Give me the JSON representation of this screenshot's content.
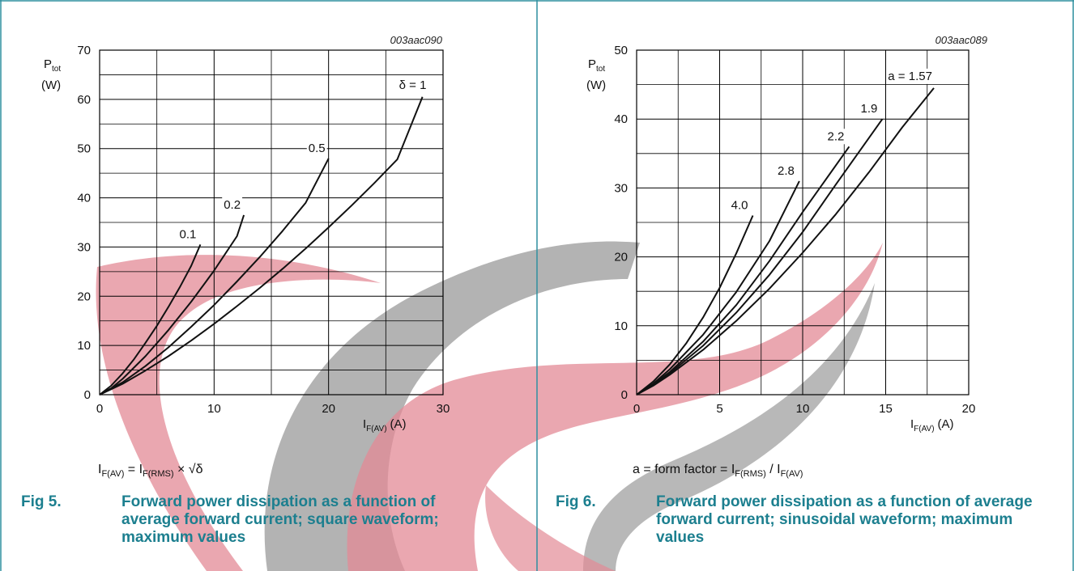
{
  "colors": {
    "border": "#2f8f9f",
    "caption": "#1c7f8f",
    "watermark_red": "#d9354a",
    "watermark_gray": "#777777"
  },
  "chart_data": [
    {
      "type": "line",
      "code": "003aac090",
      "ylabel_main": "P",
      "ylabel_sub": "tot",
      "ylabel_unit": "(W)",
      "xlabel_main": "I",
      "xlabel_sub": "F(AV)",
      "xlabel_unit": "(A)",
      "xlim": [
        0,
        30
      ],
      "ylim": [
        0,
        70
      ],
      "xticks": [
        0,
        10,
        20,
        30
      ],
      "yticks": [
        0,
        10,
        20,
        30,
        40,
        50,
        60,
        70
      ],
      "grid": true,
      "series": [
        {
          "name": "0.1",
          "x": [
            0,
            1,
            2,
            3,
            4,
            5,
            6,
            7,
            8,
            8.8
          ],
          "y": [
            0,
            1.8,
            4.3,
            7.2,
            10.5,
            14,
            17.8,
            21.8,
            26.2,
            30.5
          ]
        },
        {
          "name": "0.2",
          "x": [
            0,
            1,
            2,
            4,
            6,
            8,
            10,
            12,
            12.6
          ],
          "y": [
            0,
            1.3,
            3.2,
            7.8,
            13.1,
            18.9,
            25.2,
            32.2,
            36.5
          ]
        },
        {
          "name": "0.5",
          "x": [
            0,
            2,
            4,
            6,
            8,
            10,
            12,
            14,
            16,
            18,
            20
          ],
          "y": [
            0,
            2.5,
            5.8,
            9.6,
            13.8,
            18.2,
            23,
            28,
            33.3,
            39,
            48
          ]
        },
        {
          "name": "δ = 1",
          "x": [
            0,
            2,
            4,
            6,
            8,
            10,
            12,
            14,
            16,
            18,
            20,
            22,
            24,
            26,
            28.2
          ],
          "y": [
            0,
            2.2,
            4.9,
            7.8,
            11,
            14.4,
            18,
            21.7,
            25.6,
            29.7,
            34,
            38.4,
            43,
            47.8,
            60.5
          ]
        }
      ],
      "note_lhs": "I",
      "note_lhs_sub": "F(AV)",
      "note_eq": " = I",
      "note_rhs_sub": "F(RMS)",
      "note_tail": " × √δ",
      "fig_number": "Fig 5.",
      "fig_title": "Forward power dissipation as a function of average forward current; square waveform; maximum values"
    },
    {
      "type": "line",
      "code": "003aac089",
      "ylabel_main": "P",
      "ylabel_sub": "tot",
      "ylabel_unit": "(W)",
      "xlabel_main": "I",
      "xlabel_sub": "F(AV)",
      "xlabel_unit": "(A)",
      "xlim": [
        0,
        20
      ],
      "ylim": [
        0,
        50
      ],
      "xticks": [
        0,
        5,
        10,
        15,
        20
      ],
      "yticks": [
        0,
        10,
        20,
        30,
        40,
        50
      ],
      "grid": true,
      "series": [
        {
          "name": "4.0",
          "x": [
            0,
            1,
            2,
            3,
            4,
            5,
            6,
            7
          ],
          "y": [
            0,
            1.9,
            4.4,
            7.5,
            11.2,
            15.5,
            20.5,
            26
          ]
        },
        {
          "name": "2.8",
          "x": [
            0,
            1,
            2,
            4,
            6,
            8,
            9.8
          ],
          "y": [
            0,
            1.6,
            3.7,
            8.7,
            14.9,
            22.3,
            31
          ]
        },
        {
          "name": "2.2",
          "x": [
            0,
            1,
            2,
            4,
            6,
            8,
            10,
            12.8
          ],
          "y": [
            0,
            1.5,
            3.3,
            7.7,
            13,
            19.4,
            26.5,
            36
          ]
        },
        {
          "name": "1.9",
          "x": [
            0,
            1,
            2,
            4,
            6,
            8,
            10,
            12,
            14.8
          ],
          "y": [
            0,
            1.4,
            3.1,
            7.1,
            11.9,
            17.4,
            23.6,
            30.5,
            40
          ]
        },
        {
          "name": "a = 1.57",
          "x": [
            0,
            1,
            2,
            4,
            6,
            8,
            10,
            12,
            14,
            16,
            17.9
          ],
          "y": [
            0,
            1.3,
            2.9,
            6.5,
            10.7,
            15.4,
            20.6,
            26.2,
            32.3,
            38.8,
            44.5
          ]
        }
      ],
      "note_lhs": "a = form factor = I",
      "note_lhs_sub": "F(RMS)",
      "note_eq": " / I",
      "note_rhs_sub": "F(AV)",
      "note_tail": "",
      "fig_number": "Fig 6.",
      "fig_title": "Forward power dissipation as a function of average forward current; sinusoidal waveform; maximum values"
    }
  ]
}
